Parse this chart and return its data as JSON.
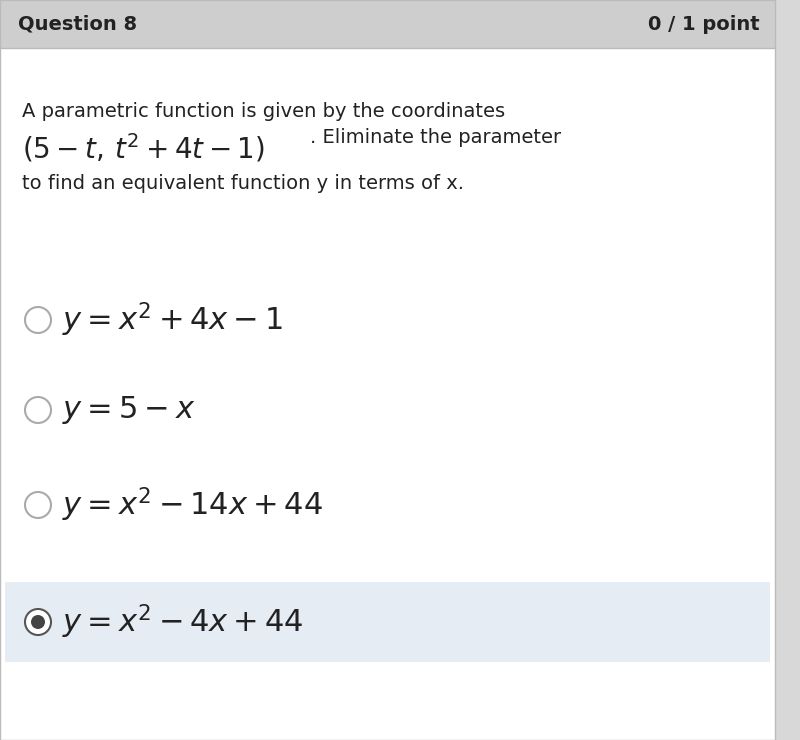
{
  "header_text": "Question 8",
  "score_text": "0 / 1 point",
  "header_bg": "#cecece",
  "body_bg": "#ffffff",
  "question_line1": "A parametric function is given by the coordinates",
  "question_line3": "to find an equivalent function y in terms of x.",
  "options": [
    {
      "math": "$y = x^2 + 4x - 1$",
      "selected": false
    },
    {
      "math": "$y = 5 - x$",
      "selected": false
    },
    {
      "math": "$y = x^2 - 14x + 44$",
      "selected": false
    },
    {
      "math": "$y = x^2 - 4x + 44$",
      "selected": true
    }
  ],
  "option_bg_selected": "#e6ecf4",
  "circle_color_unselected_edge": "#aaaaaa",
  "circle_color_selected_edge": "#555555",
  "circle_color_selected_fill": "#444444",
  "text_color": "#222222",
  "header_fontsize": 14,
  "question_fontsize": 14,
  "math_question_fontsize": 20,
  "option_fontsize": 22,
  "scrollbar_color": "#d8d8d8",
  "border_color": "#bbbbbb"
}
